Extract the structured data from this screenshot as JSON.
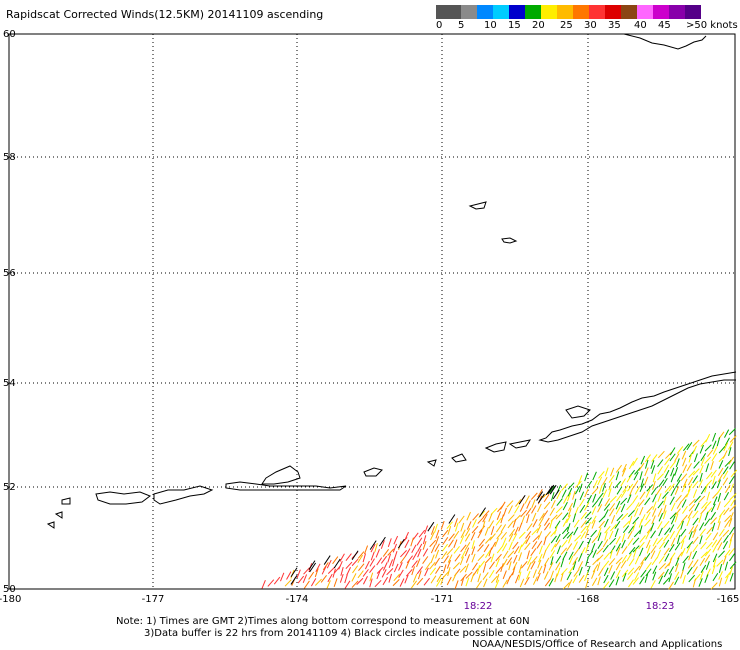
{
  "title": "Rapidscat Corrected Winds(12.5KM) 20141109 ascending",
  "legend": {
    "colors": [
      "#555555",
      "#8a8a8a",
      "#0088ff",
      "#00ccff",
      "#0000cc",
      "#00aa00",
      "#ffee00",
      "#ffbb00",
      "#ff7700",
      "#ff3333",
      "#dd0000",
      "#8b4513",
      "#ff66ff",
      "#cc00cc",
      "#8800aa",
      "#550088"
    ],
    "labels": [
      "0",
      "5",
      "10",
      "15",
      "20",
      "25",
      "30",
      "35",
      "40",
      "45",
      ">50 knots"
    ]
  },
  "map": {
    "lon_labels": [
      "-180",
      "-177",
      "-174",
      "-171",
      "-168",
      "-165"
    ],
    "lat_labels": [
      "60",
      "58",
      "56",
      "54",
      "52",
      "50"
    ],
    "times": [
      "18:22",
      "18:23"
    ]
  },
  "notes": {
    "line1": "Note: 1) Times are GMT 2)Times along bottom correspond to measurement at 60N",
    "line2": "3)Data buffer is 22 hrs from 20141109 4) Black circles indicate possible contamination",
    "line3": "NOAA/NESDIS/Office of Research and Applications"
  }
}
